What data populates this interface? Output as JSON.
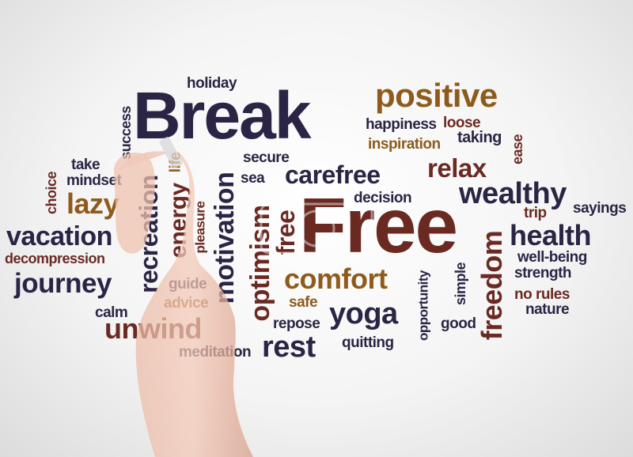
{
  "words": {
    "holiday": "holiday",
    "break": "Break",
    "positive": "positive",
    "success": "success",
    "happiness": "happiness",
    "loose": "loose",
    "inspiration": "inspiration",
    "taking": "taking",
    "ease": "ease",
    "take": "take",
    "mindset": "mindset",
    "life": "life",
    "secure": "secure",
    "carefree": "carefree",
    "relax": "relax",
    "choice": "choice",
    "sea": "sea",
    "decision": "decision",
    "wealthy": "wealthy",
    "sayings": "sayings",
    "lazy": "lazy",
    "free_big": "Free",
    "trip": "trip",
    "vacation": "vacation",
    "health": "health",
    "decompression": "decompression",
    "recreation": "recreation",
    "energy": "energy",
    "pleasure": "pleasure",
    "motivation": "motivation",
    "optimism": "optimism",
    "free_small": "free",
    "freedom": "freedom",
    "well_being": "well-being",
    "journey": "journey",
    "guide": "guide",
    "comfort": "comfort",
    "strength": "strength",
    "opportunity": "opportunity",
    "simple": "simple",
    "advice": "advice",
    "no_rules": "no rules",
    "calm": "calm",
    "safe": "safe",
    "nature": "nature",
    "unwind": "unwind",
    "repose": "repose",
    "yoga": "yoga",
    "good": "good",
    "rest": "rest",
    "meditation": "meditation",
    "quitting": "quitting"
  },
  "colors": {
    "navy": "#2b2445",
    "brown": "#6a2a22",
    "gold": "#8e5b1c",
    "background": "#f4f4f4"
  },
  "decoration": {
    "hand": "hand-holding-marker",
    "watermark": "watermark"
  }
}
